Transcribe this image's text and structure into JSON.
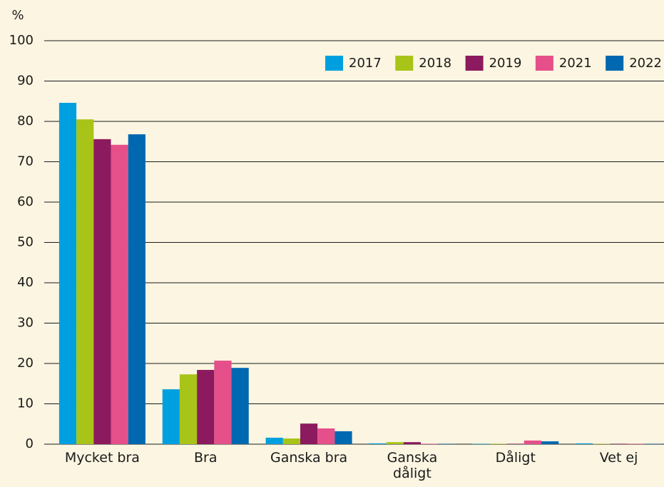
{
  "chart_data": {
    "type": "bar",
    "y_label": "%",
    "categories": [
      "Mycket bra",
      "Bra",
      "Ganska bra",
      "Ganska dåligt",
      "Dåligt",
      "Vet ej"
    ],
    "series": [
      {
        "name": "2017",
        "color": "#00a0e0",
        "values": [
          84.6,
          13.6,
          1.6,
          0.2,
          0.1,
          0.2
        ]
      },
      {
        "name": "2018",
        "color": "#a8c418",
        "values": [
          80.5,
          17.3,
          1.4,
          0.5,
          0.1,
          0.1
        ]
      },
      {
        "name": "2019",
        "color": "#8c1a5e",
        "values": [
          75.6,
          18.4,
          5.1,
          0.5,
          0.1,
          0.1
        ]
      },
      {
        "name": "2021",
        "color": "#e5508a",
        "values": [
          74.2,
          20.7,
          3.9,
          0.1,
          0.9,
          0.1
        ]
      },
      {
        "name": "2022",
        "color": "#0068b0",
        "values": [
          76.8,
          18.9,
          3.2,
          0.1,
          0.7,
          0.1
        ]
      }
    ],
    "ylim": [
      0,
      100
    ],
    "yticks": [
      0,
      10,
      20,
      30,
      40,
      50,
      60,
      70,
      80,
      90,
      100
    ],
    "grid": true,
    "legend": "top-right"
  }
}
